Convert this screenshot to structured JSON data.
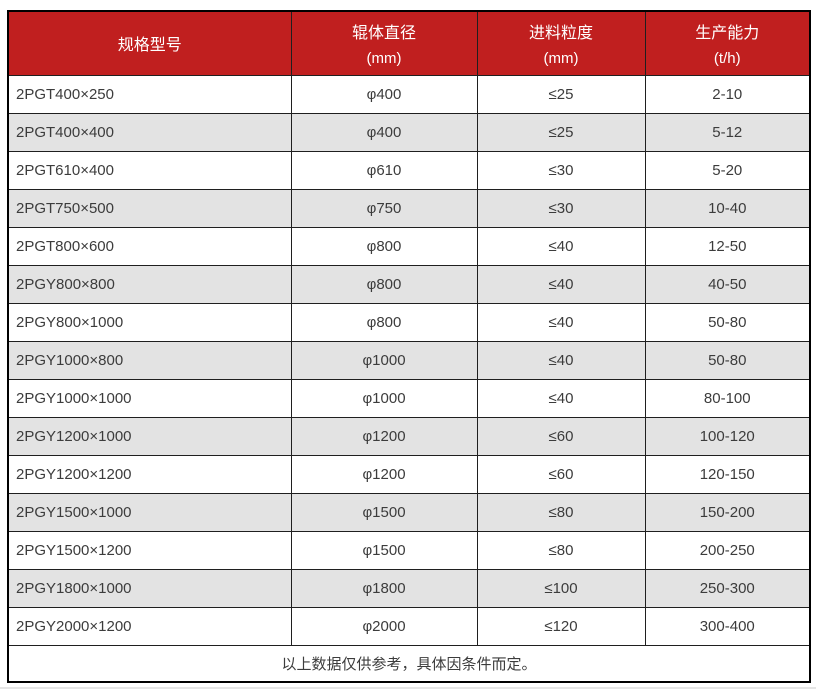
{
  "colors": {
    "header_bg": "#c01f1f",
    "header_text": "#ffffff",
    "row_bg": "#ffffff",
    "row_alt_bg": "#e3e3e3",
    "grid_border": "#1f1f1f",
    "outer_border": "#000000",
    "body_text": "#3c3c3c"
  },
  "table": {
    "headers": [
      {
        "title": "规格型号",
        "unit": ""
      },
      {
        "title": "辊体直径",
        "unit": "(mm)"
      },
      {
        "title": "进料粒度",
        "unit": "(mm)"
      },
      {
        "title": "生产能力",
        "unit": "(t/h)"
      }
    ],
    "rows": [
      [
        "2PGT400×250",
        "φ400",
        "≤25",
        "2-10"
      ],
      [
        "2PGT400×400",
        "φ400",
        "≤25",
        "5-12"
      ],
      [
        "2PGT610×400",
        "φ610",
        "≤30",
        "5-20"
      ],
      [
        "2PGT750×500",
        "φ750",
        "≤30",
        "10-40"
      ],
      [
        "2PGT800×600",
        "φ800",
        "≤40",
        "12-50"
      ],
      [
        "2PGY800×800",
        "φ800",
        "≤40",
        "40-50"
      ],
      [
        "2PGY800×1000",
        "φ800",
        "≤40",
        "50-80"
      ],
      [
        "2PGY1000×800",
        "φ1000",
        "≤40",
        "50-80"
      ],
      [
        "2PGY1000×1000",
        "φ1000",
        "≤40",
        "80-100"
      ],
      [
        "2PGY1200×1000",
        "φ1200",
        "≤60",
        "100-120"
      ],
      [
        "2PGY1200×1200",
        "φ1200",
        "≤60",
        "120-150"
      ],
      [
        "2PGY1500×1000",
        "φ1500",
        "≤80",
        "150-200"
      ],
      [
        "2PGY1500×1200",
        "φ1500",
        "≤80",
        "200-250"
      ],
      [
        "2PGY1800×1000",
        "φ1800",
        "≤100",
        "250-300"
      ],
      [
        "2PGY2000×1200",
        "φ2000",
        "≤120",
        "300-400"
      ]
    ],
    "footer": "以上数据仅供参考，具体因条件而定。"
  }
}
